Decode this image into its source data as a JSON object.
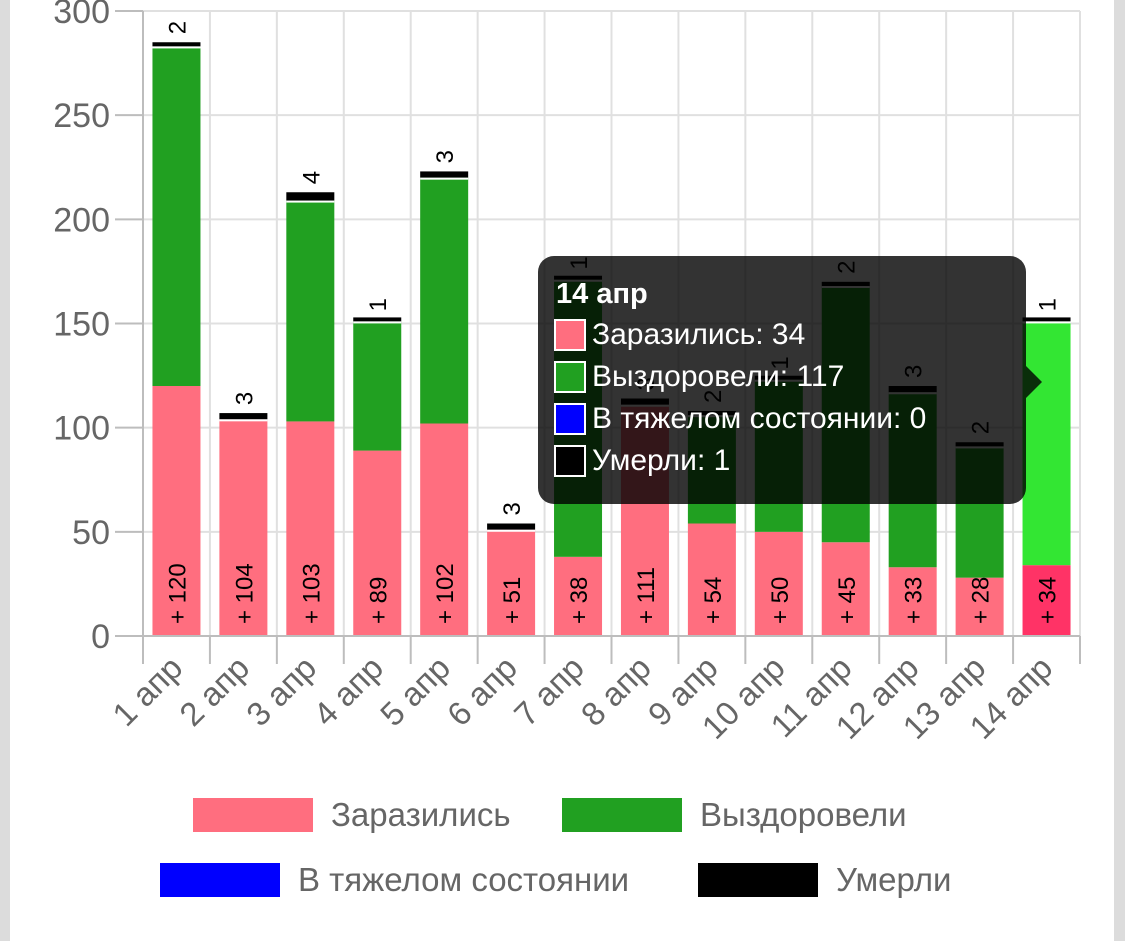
{
  "chart_data": {
    "type": "bar",
    "stacked": true,
    "categories": [
      "1 апр",
      "2 апр",
      "3 апр",
      "4 апр",
      "5 апр",
      "6 апр",
      "7 апр",
      "8 апр",
      "9 апр",
      "10 апр",
      "11 апр",
      "12 апр",
      "13 апр",
      "14 апр"
    ],
    "series": [
      {
        "name": "Заразились",
        "color": "#ff6e7f",
        "values": [
          120,
          104,
          103,
          89,
          102,
          51,
          38,
          111,
          54,
          50,
          45,
          33,
          28,
          34
        ]
      },
      {
        "name": "Выздоровели",
        "color": "#21a021",
        "values": [
          163,
          0,
          106,
          62,
          118,
          0,
          133,
          0,
          52,
          73,
          123,
          84,
          63,
          117
        ]
      },
      {
        "name": "В тяжелом состоянии",
        "color": "#0000ff",
        "values": [
          0,
          0,
          0,
          0,
          0,
          0,
          0,
          0,
          0,
          0,
          0,
          0,
          0,
          0
        ]
      },
      {
        "name": "Умерли",
        "color": "#000000",
        "values": [
          2,
          3,
          4,
          1,
          3,
          3,
          1,
          3,
          2,
          1,
          2,
          3,
          2,
          1
        ]
      }
    ],
    "infected_labels": [
      "+ 120",
      "+ 104",
      "+ 103",
      "+ 89",
      "+ 102",
      "+ 51",
      "+ 38",
      "+ 111",
      "+ 54",
      "+ 50",
      "+ 45",
      "+ 33",
      "+ 28",
      "+ 34"
    ],
    "death_labels": [
      "2",
      "3",
      "4",
      "1",
      "3",
      "3",
      "1",
      "3",
      "2",
      "1",
      "2",
      "3",
      "2",
      "1"
    ],
    "yticks": [
      "0",
      "50",
      "100",
      "150",
      "200",
      "250",
      "300"
    ],
    "ylim": [
      0,
      300
    ],
    "grid": true,
    "legend_position": "bottom",
    "highlighted_category": "14 апр",
    "highlight_colors": {
      "infected": "#ff3366",
      "recovered": "#33e633"
    }
  },
  "tooltip": {
    "title": "14 апр",
    "rows": [
      {
        "text": "Заразились: 34",
        "color": "#ff6e7f"
      },
      {
        "text": "Выздоровели: 117",
        "color": "#21a021"
      },
      {
        "text": "В тяжелом состоянии: 0",
        "color": "#0000ff"
      },
      {
        "text": "Умерли: 1",
        "color": "#000000"
      }
    ]
  },
  "legend": {
    "items": [
      {
        "label": "Заразились",
        "color": "#ff6e7f"
      },
      {
        "label": "Выздоровели",
        "color": "#21a021"
      },
      {
        "label": "В тяжелом состоянии",
        "color": "#0000ff"
      },
      {
        "label": "Умерли",
        "color": "#000000"
      }
    ]
  }
}
